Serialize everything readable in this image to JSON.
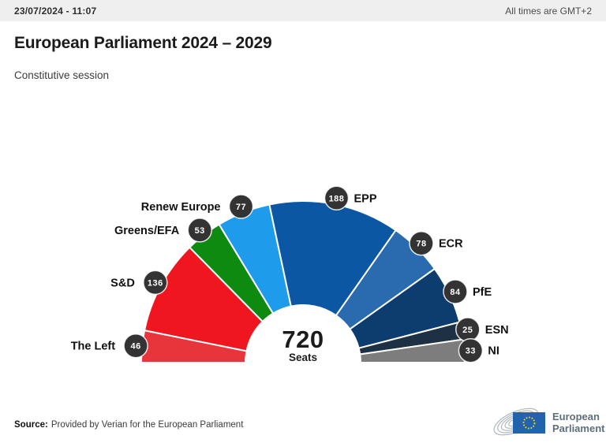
{
  "topbar": {
    "datetime": "23/07/2024 - 11:07",
    "timezone_note": "All times are GMT+2"
  },
  "title": "European Parliament 2024 – 2029",
  "subtitle": "Constitutive session",
  "chart_data": {
    "type": "pie",
    "variant": "semicircle_donut",
    "title": "European Parliament 2024 – 2029",
    "total_seats": 720,
    "center_label": {
      "value": "720",
      "unit": "Seats"
    },
    "badge_color": "#333333",
    "badge_text_color": "#ffffff",
    "label_color": "#111111",
    "gap_color": "#ffffff",
    "categories": [
      "The Left",
      "S&D",
      "Greens/EFA",
      "Renew Europe",
      "EPP",
      "ECR",
      "PfE",
      "ESN",
      "NI"
    ],
    "values": [
      46,
      136,
      53,
      77,
      188,
      78,
      84,
      25,
      33
    ],
    "series": [
      {
        "name": "The Left",
        "seats": 46,
        "color": "#E8353B",
        "label_side": "left"
      },
      {
        "name": "S&D",
        "seats": 136,
        "color": "#EF161F",
        "label_side": "left"
      },
      {
        "name": "Greens/EFA",
        "seats": 53,
        "color": "#0E8A10",
        "label_side": "left"
      },
      {
        "name": "Renew Europe",
        "seats": 77,
        "color": "#1E9CEB",
        "label_side": "left"
      },
      {
        "name": "EPP",
        "seats": 188,
        "color": "#0B57A4",
        "label_side": "right"
      },
      {
        "name": "ECR",
        "seats": 78,
        "color": "#2A6AAE",
        "label_side": "right"
      },
      {
        "name": "PfE",
        "seats": 84,
        "color": "#0D3C6F",
        "label_side": "right"
      },
      {
        "name": "ESN",
        "seats": 25,
        "color": "#1E3044",
        "label_side": "right"
      },
      {
        "name": "NI",
        "seats": 33,
        "color": "#7D7D7D",
        "label_side": "right"
      }
    ],
    "layout": {
      "start_angle_deg": 180,
      "end_angle_deg": 0,
      "grid": false,
      "legend": "inline-labels-around-arc"
    }
  },
  "footer": {
    "source_label": "Source:",
    "source_text": "Provided by Verian for the European Parliament"
  },
  "logo": {
    "line1": "European",
    "line2": "Parliament",
    "flag_color": "#2263AE",
    "star_color": "#FFD617",
    "arc_color": "#B0B8BF",
    "text_color": "#5D6E7A"
  }
}
